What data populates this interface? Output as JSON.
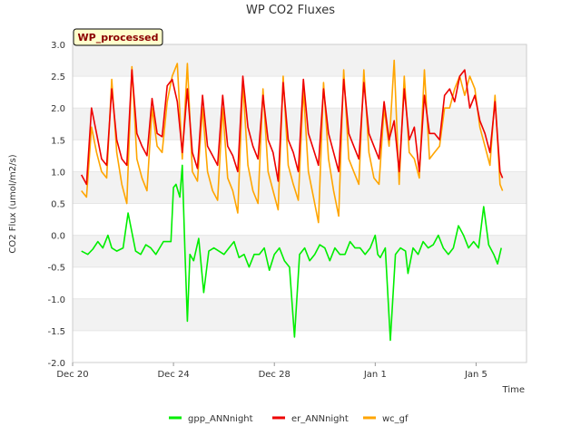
{
  "chart_data": {
    "type": "line",
    "title": "WP CO2 Fluxes",
    "xlabel": "Time",
    "ylabel": "CO2 Flux (umol/m2/s)",
    "badge": "WP_processed",
    "ylim": [
      -2.0,
      3.0
    ],
    "xlim": [
      0,
      18
    ],
    "yticks": [
      {
        "value": 3.0,
        "label": "3.0"
      },
      {
        "value": 2.5,
        "label": "2.5"
      },
      {
        "value": 2.0,
        "label": "2.0"
      },
      {
        "value": 1.5,
        "label": "1.5"
      },
      {
        "value": 1.0,
        "label": "1.0"
      },
      {
        "value": 0.5,
        "label": "0.5"
      },
      {
        "value": 0.0,
        "label": "0.0"
      },
      {
        "value": -0.5,
        "label": "-0.5"
      },
      {
        "value": -1.0,
        "label": "-1.0"
      },
      {
        "value": -1.5,
        "label": "-1.5"
      },
      {
        "value": -2.0,
        "label": "-2.0"
      }
    ],
    "xticks": [
      {
        "value": 0,
        "label": "Dec 20"
      },
      {
        "value": 4,
        "label": "Dec 24"
      },
      {
        "value": 8,
        "label": "Dec 28"
      },
      {
        "value": 12,
        "label": "Jan 1"
      },
      {
        "value": 16,
        "label": "Jan 5"
      }
    ],
    "series": [
      {
        "name": "gpp_ANNnight",
        "color": "#00ee00",
        "x": [
          0.35,
          0.6,
          0.8,
          1.0,
          1.2,
          1.4,
          1.55,
          1.75,
          2.0,
          2.2,
          2.5,
          2.7,
          2.9,
          3.1,
          3.3,
          3.6,
          3.9,
          4.0,
          4.1,
          4.25,
          4.35,
          4.45,
          4.55,
          4.65,
          4.8,
          5.0,
          5.2,
          5.4,
          5.6,
          5.8,
          6.0,
          6.2,
          6.4,
          6.6,
          6.8,
          7.0,
          7.2,
          7.4,
          7.6,
          7.8,
          8.0,
          8.2,
          8.4,
          8.6,
          8.8,
          9.0,
          9.2,
          9.4,
          9.6,
          9.8,
          10.0,
          10.2,
          10.4,
          10.6,
          10.8,
          11.0,
          11.2,
          11.4,
          11.6,
          11.8,
          12.0,
          12.1,
          12.2,
          12.4,
          12.6,
          12.8,
          13.0,
          13.2,
          13.3,
          13.5,
          13.7,
          13.9,
          14.1,
          14.3,
          14.5,
          14.7,
          14.9,
          15.1,
          15.3,
          15.5,
          15.7,
          15.9,
          16.1,
          16.3,
          16.5,
          16.7,
          16.85,
          17.0
        ],
        "values": [
          -0.25,
          -0.3,
          -0.22,
          -0.1,
          -0.2,
          0.0,
          -0.2,
          -0.25,
          -0.2,
          0.35,
          -0.25,
          -0.3,
          -0.15,
          -0.2,
          -0.3,
          -0.1,
          -0.1,
          0.75,
          0.8,
          0.6,
          1.1,
          -0.2,
          -1.35,
          -0.3,
          -0.4,
          -0.05,
          -0.9,
          -0.25,
          -0.2,
          -0.25,
          -0.3,
          -0.2,
          -0.1,
          -0.35,
          -0.3,
          -0.5,
          -0.3,
          -0.3,
          -0.2,
          -0.55,
          -0.3,
          -0.2,
          -0.4,
          -0.5,
          -1.6,
          -0.3,
          -0.2,
          -0.4,
          -0.3,
          -0.15,
          -0.2,
          -0.4,
          -0.2,
          -0.3,
          -0.3,
          -0.1,
          -0.2,
          -0.2,
          -0.3,
          -0.2,
          0.0,
          -0.3,
          -0.35,
          -0.2,
          -1.65,
          -0.3,
          -0.2,
          -0.25,
          -0.6,
          -0.2,
          -0.3,
          -0.1,
          -0.2,
          -0.15,
          0.0,
          -0.2,
          -0.3,
          -0.2,
          0.15,
          0.0,
          -0.2,
          -0.1,
          -0.2,
          0.45,
          -0.15,
          -0.3,
          -0.45,
          -0.2
        ]
      },
      {
        "name": "er_ANNnight",
        "color": "#ee0000",
        "x": [
          0.35,
          0.55,
          0.75,
          0.95,
          1.15,
          1.35,
          1.55,
          1.75,
          1.95,
          2.15,
          2.35,
          2.55,
          2.75,
          2.95,
          3.15,
          3.35,
          3.55,
          3.75,
          3.95,
          4.15,
          4.35,
          4.55,
          4.75,
          4.95,
          5.15,
          5.35,
          5.55,
          5.75,
          5.95,
          6.15,
          6.35,
          6.55,
          6.75,
          6.95,
          7.15,
          7.35,
          7.55,
          7.75,
          7.95,
          8.15,
          8.35,
          8.55,
          8.75,
          8.95,
          9.15,
          9.35,
          9.55,
          9.75,
          9.95,
          10.15,
          10.35,
          10.55,
          10.75,
          10.95,
          11.15,
          11.35,
          11.55,
          11.75,
          11.95,
          12.15,
          12.35,
          12.55,
          12.75,
          12.95,
          13.15,
          13.35,
          13.55,
          13.75,
          13.95,
          14.15,
          14.35,
          14.55,
          14.75,
          14.95,
          15.15,
          15.35,
          15.55,
          15.75,
          15.95,
          16.15,
          16.35,
          16.55,
          16.75,
          16.95,
          17.05
        ],
        "values": [
          0.95,
          0.8,
          2.0,
          1.6,
          1.2,
          1.1,
          2.3,
          1.5,
          1.2,
          1.1,
          2.6,
          1.6,
          1.4,
          1.25,
          2.15,
          1.6,
          1.55,
          2.35,
          2.45,
          2.1,
          1.3,
          2.3,
          1.3,
          1.05,
          2.2,
          1.4,
          1.25,
          1.1,
          2.2,
          1.4,
          1.25,
          1.0,
          2.5,
          1.7,
          1.4,
          1.2,
          2.2,
          1.5,
          1.3,
          0.85,
          2.4,
          1.5,
          1.3,
          1.0,
          2.45,
          1.6,
          1.35,
          1.1,
          2.3,
          1.6,
          1.3,
          1.0,
          2.45,
          1.6,
          1.4,
          1.2,
          2.4,
          1.6,
          1.4,
          1.2,
          2.1,
          1.5,
          1.8,
          1.0,
          2.3,
          1.5,
          1.7,
          1.0,
          2.2,
          1.6,
          1.6,
          1.5,
          2.2,
          2.3,
          2.1,
          2.5,
          2.6,
          2.0,
          2.2,
          1.8,
          1.6,
          1.3,
          2.1,
          1.0,
          0.9
        ]
      },
      {
        "name": "wc_gf",
        "color": "#ffa500",
        "x": [
          0.35,
          0.55,
          0.75,
          0.95,
          1.15,
          1.35,
          1.55,
          1.75,
          1.95,
          2.15,
          2.35,
          2.55,
          2.75,
          2.95,
          3.15,
          3.35,
          3.55,
          3.75,
          3.95,
          4.15,
          4.35,
          4.55,
          4.75,
          4.95,
          5.15,
          5.35,
          5.55,
          5.75,
          5.95,
          6.15,
          6.35,
          6.55,
          6.75,
          6.95,
          7.15,
          7.35,
          7.55,
          7.75,
          7.95,
          8.15,
          8.35,
          8.55,
          8.75,
          8.95,
          9.15,
          9.35,
          9.55,
          9.75,
          9.95,
          10.15,
          10.35,
          10.55,
          10.75,
          10.95,
          11.15,
          11.35,
          11.55,
          11.75,
          11.95,
          12.15,
          12.35,
          12.55,
          12.75,
          12.95,
          13.15,
          13.35,
          13.55,
          13.75,
          13.95,
          14.15,
          14.35,
          14.55,
          14.75,
          14.95,
          15.15,
          15.35,
          15.55,
          15.75,
          15.95,
          16.15,
          16.35,
          16.55,
          16.75,
          16.95,
          17.05
        ],
        "values": [
          0.7,
          0.6,
          1.7,
          1.3,
          1.0,
          0.9,
          2.45,
          1.3,
          0.8,
          0.5,
          2.65,
          1.2,
          0.9,
          0.7,
          2.0,
          1.4,
          1.3,
          2.1,
          2.5,
          2.7,
          1.2,
          2.7,
          1.0,
          0.85,
          2.0,
          1.0,
          0.7,
          0.55,
          2.0,
          0.9,
          0.7,
          0.35,
          2.4,
          1.1,
          0.7,
          0.5,
          2.3,
          1.0,
          0.7,
          0.4,
          2.5,
          1.1,
          0.8,
          0.55,
          2.3,
          1.0,
          0.6,
          0.2,
          2.4,
          1.2,
          0.7,
          0.3,
          2.6,
          1.2,
          1.0,
          0.8,
          2.6,
          1.3,
          0.9,
          0.8,
          2.0,
          1.4,
          2.75,
          0.8,
          2.5,
          1.3,
          1.2,
          0.9,
          2.6,
          1.2,
          1.3,
          1.4,
          2.0,
          2.0,
          2.3,
          2.5,
          2.2,
          2.5,
          2.3,
          1.7,
          1.4,
          1.1,
          2.2,
          0.8,
          0.7
        ]
      }
    ],
    "legend_position": "bottom-center",
    "grid": true
  }
}
